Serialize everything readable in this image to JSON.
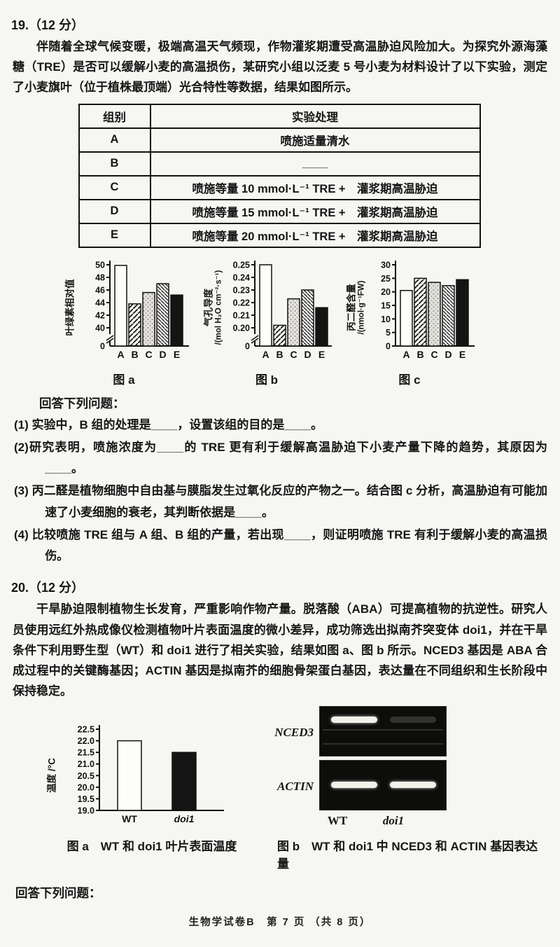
{
  "page": {
    "footer": "生物学试卷B　第 7 页 （共 8 页）"
  },
  "q19": {
    "number": "19.（12 分）",
    "intro": "伴随着全球气候变暖，极端高温天气频现，作物灌浆期遭受高温胁迫风险加大。为探究外源海藻糖（TRE）是否可以缓解小麦的高温损伤，某研究小组以泛麦 5 号小麦为材料设计了以下实验，测定了小麦旗叶（位于植株最顶端）光合特性等数据，结果如图所示。",
    "table": {
      "headers": [
        "组别",
        "实验处理"
      ],
      "rows": [
        [
          "A",
          "喷施适量清水"
        ],
        [
          "B",
          "____"
        ],
        [
          "C",
          "喷施等量 10 mmol·L⁻¹ TRE +　灌浆期高温胁迫"
        ],
        [
          "D",
          "喷施等量 15 mmol·L⁻¹ TRE +　灌浆期高温胁迫"
        ],
        [
          "E",
          "喷施等量 20 mmol·L⁻¹ TRE +　灌浆期高温胁迫"
        ]
      ]
    },
    "prompt": "回答下列问题：",
    "items": [
      "(1) 实验中，B 组的处理是____，设置该组的目的是____。",
      "(2)研究表明，喷施浓度为____的 TRE 更有利于缓解高温胁迫下小麦产量下降的趋势，其原因为____。",
      "(3) 丙二醛是植物细胞中自由基与膜脂发生过氧化反应的产物之一。结合图 c 分析，高温胁迫有可能加速了小麦细胞的衰老，其判断依据是____。",
      "(4) 比较喷施 TRE 组与 A 组、B 组的产量，若出现____，则证明喷施 TRE 有利于缓解小麦的高温损伤。"
    ]
  },
  "q20": {
    "number": "20.（12 分）",
    "intro": "干旱胁迫限制植物生长发育，严重影响作物产量。脱落酸（ABA）可提高植物的抗逆性。研究人员使用远红外热成像仪检测植物叶片表面温度的微小差异，成功筛选出拟南芥突变体 doi1，并在干旱条件下利用野生型（WT）和 doi1 进行了相关实验，结果如图 a、图 b 所示。NCED3 基因是 ABA 合成过程中的关键酶基因；ACTIN 基因是拟南芥的细胞骨架蛋白基因，表达量在不同组织和生长阶段中保持稳定。",
    "fig_a_caption": "图 a　WT 和 doi1 叶片表面温度",
    "fig_b_caption": "图 b　WT 和 doi1 中 NCED3 和 ACTIN 基因表达量",
    "gel": {
      "rows": [
        {
          "label": "NCED3",
          "bands": [
            "strong",
            "faint"
          ]
        },
        {
          "label": "ACTIN",
          "bands": [
            "strong",
            "strong"
          ]
        }
      ],
      "lanes": [
        "WT",
        "doi1"
      ]
    },
    "prompt": "回答下列问题："
  },
  "chart_data": [
    {
      "type": "bar",
      "title": "图 a",
      "ylabel": "叶绿素相对值",
      "ylabel_unit": "",
      "categories": [
        "A",
        "B",
        "C",
        "D",
        "E"
      ],
      "values": [
        49.9,
        43.8,
        45.6,
        47.0,
        45.2
      ],
      "yticks": [
        "40",
        "42",
        "44",
        "46",
        "48",
        "50"
      ],
      "ylim": [
        40,
        50
      ],
      "axis_break": true,
      "zero_label": "0",
      "fills": [
        "white",
        "hatch-fwd",
        "dots",
        "hatch-back",
        "black"
      ]
    },
    {
      "type": "bar",
      "title": "图 b",
      "ylabel": "气孔导度",
      "ylabel_unit": "/(mol H₂O cm⁻²·s⁻¹)",
      "categories": [
        "A",
        "B",
        "C",
        "D",
        "E"
      ],
      "values": [
        0.25,
        0.202,
        0.223,
        0.23,
        0.216
      ],
      "yticks": [
        "0.20",
        "0.21",
        "0.22",
        "0.23",
        "0.24",
        "0.25"
      ],
      "ylim": [
        0.2,
        0.25
      ],
      "axis_break": true,
      "zero_label": "0",
      "fills": [
        "white",
        "hatch-fwd",
        "dots",
        "hatch-back",
        "black"
      ]
    },
    {
      "type": "bar",
      "title": "图 c",
      "ylabel": "丙二醛含量",
      "ylabel_unit": "/(nmol·g⁻¹FW)",
      "categories": [
        "A",
        "B",
        "C",
        "D",
        "E"
      ],
      "values": [
        20.5,
        25.0,
        23.5,
        22.3,
        24.5
      ],
      "yticks": [
        "0",
        "5",
        "10",
        "15",
        "20",
        "25",
        "30"
      ],
      "ylim": [
        0,
        30
      ],
      "axis_break": false,
      "fills": [
        "white",
        "hatch-fwd",
        "dots",
        "hatch-back",
        "black"
      ]
    },
    {
      "type": "bar",
      "title": "图 a",
      "ylabel": "温度 /°C",
      "ylabel_unit": "",
      "categories": [
        "WT",
        "doi1"
      ],
      "values": [
        22.0,
        21.5
      ],
      "yticks": [
        "19.0",
        "19.5",
        "20.0",
        "20.5",
        "21.0",
        "21.5",
        "22.0",
        "22.5"
      ],
      "ylim": [
        19,
        22.5
      ],
      "axis_break": false,
      "fills": [
        "white",
        "black"
      ]
    }
  ]
}
